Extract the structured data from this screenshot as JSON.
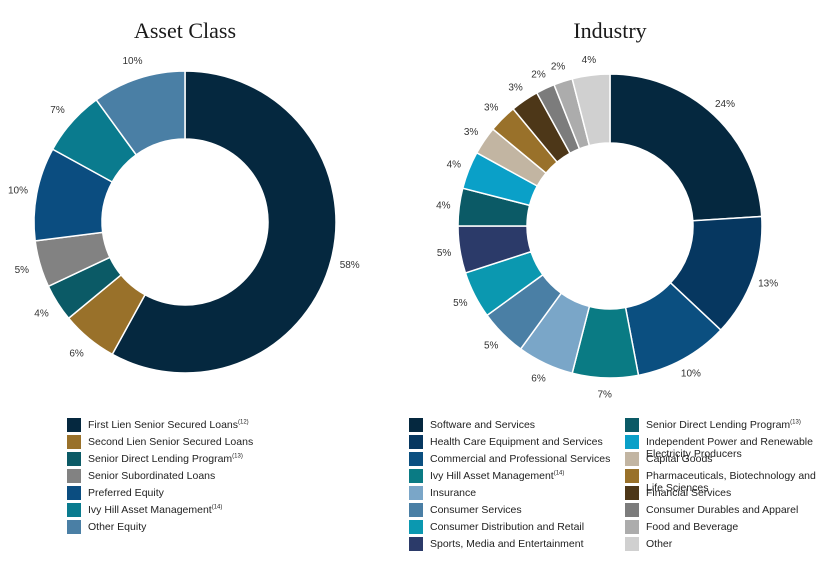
{
  "chart_data": [
    {
      "type": "pie",
      "title": "Asset Class",
      "labels": [
        "First Lien Senior Secured Loans",
        "Second Lien Senior Secured Loans",
        "Senior Direct Lending Program",
        "Senior Subordinated Loans",
        "Preferred Equity",
        "Ivy Hill Asset Management",
        "Other Equity"
      ],
      "label_notes": [
        "(12)",
        "",
        "(13)",
        "",
        "",
        "(14)",
        ""
      ],
      "values": [
        58,
        6,
        4,
        5,
        10,
        7,
        10
      ],
      "value_labels": [
        "58%",
        "6%",
        "4%",
        "5%",
        "10%",
        "7%",
        "10%"
      ],
      "colors": [
        "#05283f",
        "#99712a",
        "#0b5a66",
        "#828282",
        "#0b4d80",
        "#0a7b8e",
        "#4a7fa5"
      ],
      "legend": "bottom"
    },
    {
      "type": "pie",
      "title": "Industry",
      "labels": [
        "Software and Services",
        "Health Care Equipment and Services",
        "Commercial and Professional Services",
        "Ivy Hill Asset Management",
        "Insurance",
        "Consumer Services",
        "Consumer Distribution and Retail",
        "Sports, Media and Entertainment",
        "Senior Direct Lending Program",
        "Independent Power and Renewable Electricity Producers",
        "Capital Goods",
        "Pharmaceuticals, Biotechnology and Life Sciences",
        "Financial Services",
        "Consumer Durables and Apparel",
        "Food and Beverage",
        "Other"
      ],
      "label_notes": [
        "",
        "",
        "",
        "(14)",
        "",
        "",
        "",
        "",
        "(13)",
        "",
        "",
        "",
        "",
        "",
        "",
        ""
      ],
      "values": [
        24,
        13,
        10,
        7,
        6,
        5,
        5,
        5,
        4,
        4,
        3,
        3,
        3,
        2,
        2,
        4
      ],
      "value_labels": [
        "24%",
        "13%",
        "10%",
        "7%",
        "6%",
        "5%",
        "5%",
        "5%",
        "4%",
        "4%",
        "3%",
        "3%",
        "3%",
        "2%",
        "2%",
        "4%"
      ],
      "colors": [
        "#05283f",
        "#063760",
        "#0b4f80",
        "#0a7b84",
        "#7aa6c8",
        "#4a7fa5",
        "#0b98b0",
        "#2b3a69",
        "#0b5a66",
        "#0aa0c8",
        "#c2b5a2",
        "#99712a",
        "#4d3718",
        "#7c7c7c",
        "#acacac",
        "#d0d0d0"
      ],
      "legend": "bottom"
    }
  ]
}
